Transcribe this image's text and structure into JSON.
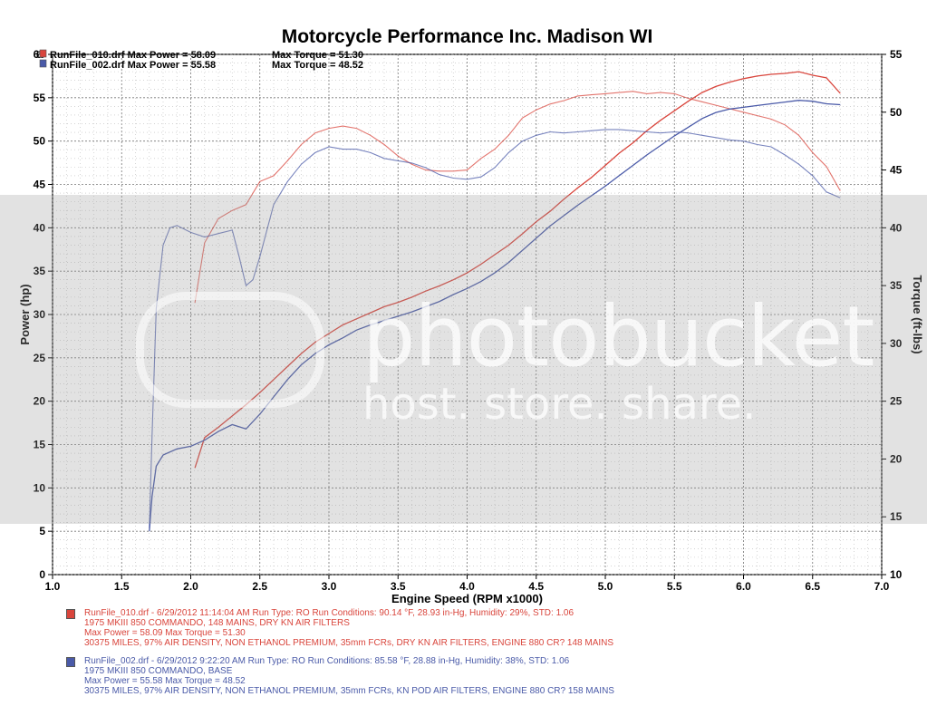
{
  "chart_data": {
    "type": "line",
    "title": "Motorcycle Performance Inc. Madison WI",
    "xlabel": "Engine Speed (RPM x1000)",
    "ylabel_left": "Power (hp)",
    "ylabel_right": "Torque (ft-lbs)",
    "xlim": [
      1.0,
      7.0
    ],
    "ylim_left": [
      0,
      60
    ],
    "ylim_right": [
      10,
      55
    ],
    "x_ticks": [
      "1.0",
      "1.5",
      "2.0",
      "2.5",
      "3.0",
      "3.5",
      "4.0",
      "4.5",
      "5.0",
      "5.5",
      "6.0",
      "6.5",
      "7.0"
    ],
    "y_ticks_left": [
      "0",
      "5",
      "10",
      "15",
      "20",
      "25",
      "30",
      "35",
      "40",
      "45",
      "50",
      "55",
      "60"
    ],
    "y_ticks_right": [
      "10",
      "15",
      "20",
      "25",
      "30",
      "35",
      "40",
      "45",
      "50",
      "55"
    ],
    "grid": true,
    "header_legend": [
      {
        "text": "RunFile_010.drf Max Power = 58.09",
        "torque": "Max Torque = 51.30",
        "color": "#d9453c"
      },
      {
        "text": "RunFile_002.drf Max Power = 55.58",
        "torque": "Max Torque = 48.52",
        "color": "#4a5aa8"
      }
    ],
    "header_prefix": "6",
    "series": [
      {
        "name": "RunFile_010.drf",
        "color": "#d9453c",
        "power": {
          "x": [
            2.03,
            2.1,
            2.2,
            2.3,
            2.4,
            2.5,
            2.6,
            2.7,
            2.8,
            2.9,
            3.0,
            3.1,
            3.2,
            3.3,
            3.4,
            3.5,
            3.6,
            3.7,
            3.8,
            3.9,
            4.0,
            4.1,
            4.2,
            4.3,
            4.4,
            4.5,
            4.6,
            4.7,
            4.8,
            4.9,
            5.0,
            5.1,
            5.2,
            5.3,
            5.4,
            5.5,
            5.6,
            5.7,
            5.8,
            5.9,
            6.0,
            6.1,
            6.2,
            6.3,
            6.4,
            6.5,
            6.6,
            6.7
          ],
          "y": [
            12.3,
            15.8,
            17.0,
            18.3,
            19.6,
            21.0,
            22.5,
            24.0,
            25.5,
            26.8,
            27.8,
            28.8,
            29.5,
            30.2,
            30.9,
            31.4,
            32.0,
            32.7,
            33.3,
            34.0,
            34.8,
            35.8,
            36.9,
            38.0,
            39.3,
            40.7,
            41.9,
            43.3,
            44.6,
            45.8,
            47.2,
            48.6,
            49.8,
            51.2,
            52.4,
            53.5,
            54.6,
            55.6,
            56.3,
            56.8,
            57.2,
            57.5,
            57.7,
            57.8,
            58.0,
            57.6,
            57.3,
            55.5
          ]
        },
        "torque": {
          "x": [
            2.03,
            2.1,
            2.2,
            2.3,
            2.4,
            2.5,
            2.6,
            2.7,
            2.8,
            2.9,
            3.0,
            3.1,
            3.2,
            3.3,
            3.4,
            3.5,
            3.6,
            3.7,
            3.8,
            3.9,
            4.0,
            4.1,
            4.2,
            4.3,
            4.4,
            4.5,
            4.6,
            4.7,
            4.8,
            4.9,
            5.0,
            5.1,
            5.2,
            5.3,
            5.4,
            5.5,
            5.6,
            5.7,
            5.8,
            5.9,
            6.0,
            6.1,
            6.2,
            6.3,
            6.4,
            6.5,
            6.6,
            6.7
          ],
          "y": [
            33.5,
            38.7,
            40.8,
            41.5,
            42.0,
            44.0,
            44.5,
            45.8,
            47.2,
            48.2,
            48.6,
            48.8,
            48.6,
            48.0,
            47.2,
            46.2,
            45.5,
            45.0,
            44.9,
            44.9,
            45.0,
            46.0,
            46.8,
            48.0,
            49.5,
            50.2,
            50.7,
            51.0,
            51.4,
            51.5,
            51.6,
            51.7,
            51.8,
            51.6,
            51.7,
            51.6,
            51.2,
            50.9,
            50.6,
            50.3,
            50.0,
            49.7,
            49.4,
            48.9,
            48.0,
            46.5,
            45.3,
            43.2
          ]
        }
      },
      {
        "name": "RunFile_002.drf",
        "color": "#4a5aa8",
        "power": {
          "x": [
            1.7,
            1.72,
            1.75,
            1.8,
            1.9,
            2.0,
            2.1,
            2.2,
            2.3,
            2.4,
            2.5,
            2.6,
            2.7,
            2.8,
            2.9,
            3.0,
            3.1,
            3.2,
            3.3,
            3.4,
            3.5,
            3.6,
            3.7,
            3.8,
            3.9,
            4.0,
            4.1,
            4.2,
            4.3,
            4.4,
            4.5,
            4.6,
            4.7,
            4.8,
            4.9,
            5.0,
            5.1,
            5.2,
            5.3,
            5.4,
            5.5,
            5.6,
            5.7,
            5.8,
            5.9,
            6.0,
            6.1,
            6.2,
            6.3,
            6.4,
            6.5,
            6.6,
            6.7
          ],
          "y": [
            5.0,
            9.0,
            12.5,
            13.8,
            14.5,
            14.8,
            15.5,
            16.5,
            17.3,
            16.8,
            18.5,
            20.5,
            22.5,
            24.2,
            25.5,
            26.5,
            27.3,
            28.2,
            28.8,
            29.3,
            29.8,
            30.3,
            30.9,
            31.5,
            32.3,
            33.0,
            33.8,
            34.8,
            36.0,
            37.4,
            38.8,
            40.2,
            41.4,
            42.6,
            43.7,
            44.8,
            46.0,
            47.2,
            48.4,
            49.5,
            50.6,
            51.6,
            52.6,
            53.3,
            53.7,
            53.9,
            54.1,
            54.3,
            54.5,
            54.7,
            54.6,
            54.3,
            54.2
          ]
        },
        "torque": {
          "x": [
            1.7,
            1.72,
            1.75,
            1.8,
            1.85,
            1.9,
            2.0,
            2.1,
            2.2,
            2.3,
            2.35,
            2.4,
            2.45,
            2.5,
            2.6,
            2.7,
            2.8,
            2.9,
            3.0,
            3.1,
            3.2,
            3.3,
            3.4,
            3.5,
            3.6,
            3.7,
            3.8,
            3.9,
            4.0,
            4.1,
            4.2,
            4.3,
            4.4,
            4.5,
            4.6,
            4.7,
            4.8,
            4.9,
            5.0,
            5.1,
            5.2,
            5.3,
            5.4,
            5.5,
            5.6,
            5.7,
            5.8,
            5.9,
            6.0,
            6.1,
            6.2,
            6.3,
            6.4,
            6.5,
            6.6,
            6.7
          ],
          "y": [
            14.0,
            22.0,
            33.0,
            38.5,
            40.0,
            40.2,
            39.6,
            39.2,
            39.5,
            39.8,
            37.5,
            35.0,
            35.5,
            37.5,
            42.0,
            44.0,
            45.5,
            46.5,
            47.0,
            46.8,
            46.8,
            46.5,
            46.0,
            45.8,
            45.6,
            45.2,
            44.6,
            44.3,
            44.2,
            44.4,
            45.2,
            46.5,
            47.5,
            48.0,
            48.3,
            48.2,
            48.3,
            48.4,
            48.5,
            48.5,
            48.4,
            48.3,
            48.2,
            48.3,
            48.2,
            48.0,
            47.8,
            47.6,
            47.5,
            47.2,
            47.0,
            46.3,
            45.5,
            44.5,
            43.1,
            42.6
          ]
        }
      }
    ]
  },
  "run_info": [
    {
      "color": "#d9453c",
      "lines": [
        "RunFile_010.drf - 6/29/2012 11:14:04 AM  Run Type: RO  Run Conditions: 90.14 °F, 28.93 in-Hg,  Humidity:  29%,  STD: 1.06",
        "1975 MKIII 850 COMMANDO, 148 MAINS, DRY KN AIR FILTERS",
        "Max Power = 58.09  Max Torque = 51.30",
        "30375 MILES, 97% AIR DENSITY, NON ETHANOL PREMIUM, 35mm FCRs, DRY KN AIR FILTERS, ENGINE 880 CR? 148 MAINS"
      ]
    },
    {
      "color": "#4a5aa8",
      "lines": [
        "RunFile_002.drf - 6/29/2012 9:22:20 AM  Run Type: RO  Run Conditions: 85.58 °F, 28.88 in-Hg,  Humidity:  38%,  STD: 1.06",
        "1975 MKIII 850 COMMANDO, BASE",
        "Max Power = 55.58  Max Torque = 48.52",
        "30375 MILES, 97% AIR DENSITY, NON ETHANOL PREMIUM, 35mm FCRs, KN POD AIR FILTERS, ENGINE 880 CR? 158 MAINS"
      ]
    }
  ],
  "watermark": {
    "main": "photobucket",
    "sub": "host. store. share."
  }
}
